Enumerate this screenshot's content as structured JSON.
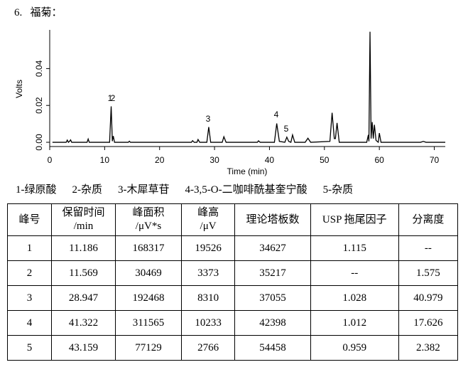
{
  "header": {
    "title": "6.   福菊："
  },
  "chart_data": {
    "type": "line",
    "x_label": "Time (min)",
    "y_label": "Volts",
    "x": [
      0.5,
      3.0,
      3.2,
      3.4,
      3.6,
      3.8,
      4.0,
      6.8,
      7.0,
      7.2,
      10.9,
      11.186,
      11.4,
      11.569,
      11.8,
      14.3,
      14.5,
      14.7,
      25.8,
      26.0,
      26.3,
      26.8,
      27.0,
      27.3,
      28.6,
      28.947,
      29.3,
      31.4,
      31.7,
      32.1,
      37.8,
      38.0,
      38.3,
      40.9,
      41.322,
      41.8,
      42.8,
      43.159,
      43.5,
      43.9,
      44.2,
      44.6,
      46.5,
      47.0,
      47.5,
      51.0,
      51.4,
      51.8,
      52.0,
      52.3,
      52.7,
      57.7,
      58.0,
      58.1,
      58.3,
      58.5,
      58.7,
      58.9,
      59.1,
      59.4,
      59.8,
      60.0,
      60.3,
      67.5,
      68.0,
      68.5,
      72
    ],
    "values": [
      0,
      0,
      0.0012,
      0,
      0.0005,
      0.0013,
      0,
      0,
      0.0018,
      0,
      0,
      0.0195,
      0.0006,
      0.0034,
      0,
      0,
      0.0006,
      0,
      0,
      0.0009,
      0,
      0,
      0.0015,
      0,
      0,
      0.0083,
      0,
      0,
      0.003,
      0,
      0,
      0.0008,
      0,
      0,
      0.0102,
      0.0005,
      0,
      0.0028,
      0.0005,
      0,
      0.004,
      0,
      0,
      0.0022,
      0,
      0.0005,
      0.016,
      0.002,
      0.002,
      0.0105,
      0,
      0,
      0.004,
      0.0005,
      0.06,
      0.002,
      0.011,
      0.002,
      0.0095,
      0.001,
      0,
      0.005,
      0,
      0,
      0.0005,
      0,
      0
    ],
    "color": "#000000",
    "xlim": [
      0,
      72
    ],
    "ylim": [
      -0.0023,
      0.061
    ],
    "xticks": [
      0,
      10,
      20,
      30,
      40,
      50,
      60,
      70
    ],
    "yticks": [
      {
        "value": 0,
        "label": "0.00"
      },
      {
        "value": 0.02,
        "label": "0.02"
      },
      {
        "value": 0.04,
        "label": "0.04"
      }
    ],
    "annotations": [
      "1",
      "2",
      "3",
      "4",
      "5"
    ]
  },
  "peak_legend": [
    "1-绿原酸",
    "2-杂质",
    "3-木犀草苷",
    "4-3,5-O-二咖啡酰基奎宁酸",
    "5-杂质"
  ],
  "table": {
    "header": [
      "峰号",
      "保留时间\n/min",
      "峰面积\n/μV*s",
      "峰高\n/μV",
      "理论塔板数",
      "USP 拖尾因子",
      "分离度"
    ],
    "rows": [
      [
        "1",
        "11.186",
        "168317",
        "19526",
        "34627",
        "1.115",
        "--"
      ],
      [
        "2",
        "11.569",
        "30469",
        "3373",
        "35217",
        "--",
        "1.575"
      ],
      [
        "3",
        "28.947",
        "192468",
        "8310",
        "37055",
        "1.028",
        "40.979"
      ],
      [
        "4",
        "41.322",
        "311565",
        "10233",
        "42398",
        "1.012",
        "17.626"
      ],
      [
        "5",
        "43.159",
        "77129",
        "2766",
        "54458",
        "0.959",
        "2.382"
      ]
    ]
  }
}
